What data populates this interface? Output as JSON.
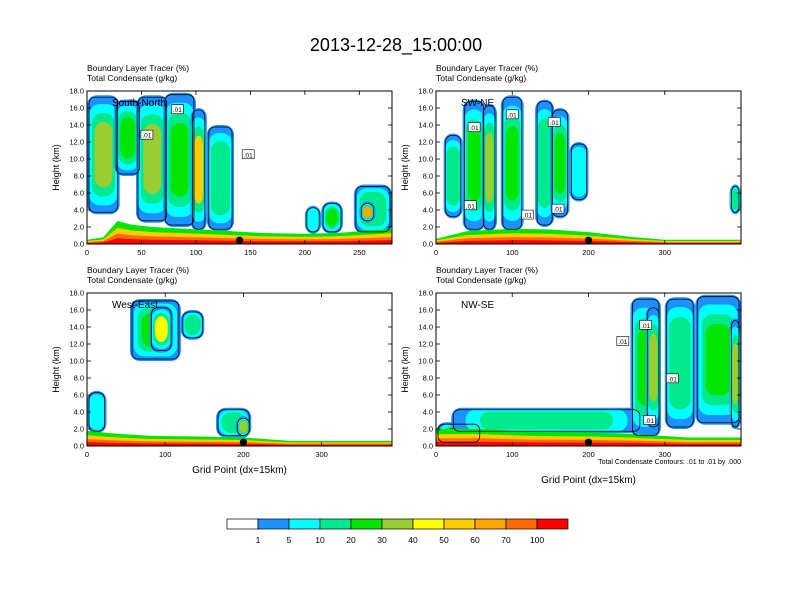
{
  "title": "2013-12-28_15:00:00",
  "colorbar": {
    "colors": [
      "#ffffff",
      "#1e90ff",
      "#00ffff",
      "#00e98c",
      "#00e600",
      "#9acd32",
      "#ffff00",
      "#ffcc00",
      "#ffa500",
      "#ff6a00",
      "#ff0000"
    ],
    "labels": [
      "1",
      "5",
      "10",
      "20",
      "30",
      "40",
      "50",
      "60",
      "70",
      "100"
    ]
  },
  "footnote": "Total Condensate Contours: .01 to .01 by .000",
  "chart_data": [
    {
      "type": "heatmap",
      "line1": "Boundary Layer Tracer    (%)",
      "line2": "Total Condensate    (g/kg)",
      "panel_label": "South-North",
      "ylabel": "Height (km)",
      "xlabel": "",
      "xlim": [
        0,
        280
      ],
      "ylim": [
        0,
        18
      ],
      "x_ticks": [
        0,
        50,
        100,
        150,
        200,
        250
      ],
      "y_ticks": [
        "0.0",
        "2.0",
        "4.0",
        "6.0",
        "8.0",
        "10.0",
        "12.0",
        "14.0",
        "16.0",
        "18.0"
      ],
      "marker_x": 140,
      "contour_labels": [
        {
          "x": 55,
          "y": 12.8,
          "text": ".01"
        },
        {
          "x": 148,
          "y": 10.5,
          "text": ".01"
        },
        {
          "x": 83,
          "y": 15.8,
          "text": ".01"
        }
      ],
      "sketch": {
        "surface": [
          [
            0,
            0.5
          ],
          [
            15,
            0.8
          ],
          [
            28,
            2.7
          ],
          [
            40,
            2.3
          ],
          [
            60,
            2.0
          ],
          [
            90,
            1.8
          ],
          [
            120,
            1.6
          ],
          [
            160,
            1.3
          ],
          [
            200,
            1.2
          ],
          [
            230,
            1.3
          ],
          [
            280,
            1.8
          ]
        ],
        "clouds": [
          {
            "x": 0,
            "w": 30,
            "ytop": 17.5,
            "ybot": 3.5,
            "v": 30
          },
          {
            "x": 25,
            "w": 25,
            "ytop": 17,
            "ybot": 8,
            "v": 20
          },
          {
            "x": 45,
            "w": 30,
            "ytop": 17.5,
            "ybot": 2.5,
            "v": 30
          },
          {
            "x": 70,
            "w": 30,
            "ytop": 17.8,
            "ybot": 2.0,
            "v": 20
          },
          {
            "x": 95,
            "w": 15,
            "ytop": 16.0,
            "ybot": 1.5,
            "v": 50
          },
          {
            "x": 110,
            "w": 25,
            "ytop": 14,
            "ybot": 1.5,
            "v": 10
          },
          {
            "x": 200,
            "w": 15,
            "ytop": 4.5,
            "ybot": 1.2,
            "v": 5
          },
          {
            "x": 215,
            "w": 20,
            "ytop": 5.0,
            "ybot": 1.2,
            "v": 20
          },
          {
            "x": 245,
            "w": 35,
            "ytop": 7.0,
            "ybot": 1.2,
            "v": 10
          },
          {
            "x": 250,
            "w": 15,
            "ytop": 5.0,
            "ybot": 2.5,
            "v": 60
          }
        ]
      }
    },
    {
      "type": "heatmap",
      "line1": "Boundary Layer Tracer    (%)",
      "line2": "Total Condensate    (g/kg)",
      "panel_label": "SW-NE",
      "ylabel": "Height (km)",
      "xlabel": "",
      "xlim": [
        0,
        400
      ],
      "ylim": [
        0,
        18
      ],
      "x_ticks": [
        0,
        100,
        200,
        300
      ],
      "y_ticks": [
        "0.0",
        "2.0",
        "4.0",
        "6.0",
        "8.0",
        "10.0",
        "12.0",
        "14.0",
        "16.0",
        "18.0"
      ],
      "marker_x": 200,
      "contour_labels": [
        {
          "x": 50,
          "y": 13.7,
          "text": ".01"
        },
        {
          "x": 100,
          "y": 15.2,
          "text": ".01"
        },
        {
          "x": 155,
          "y": 14.3,
          "text": ".01"
        },
        {
          "x": 45,
          "y": 4.5,
          "text": ".01"
        },
        {
          "x": 120,
          "y": 3.4,
          "text": ".01"
        },
        {
          "x": 160,
          "y": 4.1,
          "text": ".01"
        }
      ],
      "sketch": {
        "surface": [
          [
            0,
            0.6
          ],
          [
            40,
            1.5
          ],
          [
            100,
            1.8
          ],
          [
            150,
            1.7
          ],
          [
            200,
            1.4
          ],
          [
            260,
            0.8
          ],
          [
            300,
            0.5
          ],
          [
            400,
            0.5
          ]
        ],
        "clouds": [
          {
            "x": 10,
            "w": 25,
            "ytop": 13,
            "ybot": 3,
            "v": 10
          },
          {
            "x": 35,
            "w": 30,
            "ytop": 17,
            "ybot": 1.5,
            "v": 20
          },
          {
            "x": 60,
            "w": 20,
            "ytop": 16.5,
            "ybot": 1.5,
            "v": 30
          },
          {
            "x": 85,
            "w": 30,
            "ytop": 17.5,
            "ybot": 1.5,
            "v": 20
          },
          {
            "x": 130,
            "w": 25,
            "ytop": 17,
            "ybot": 2,
            "v": 10
          },
          {
            "x": 150,
            "w": 25,
            "ytop": 16,
            "ybot": 3,
            "v": 20
          },
          {
            "x": 175,
            "w": 25,
            "ytop": 12,
            "ybot": 5,
            "v": 5
          },
          {
            "x": 385,
            "w": 15,
            "ytop": 7.0,
            "ybot": 3.5,
            "v": 10
          }
        ]
      }
    },
    {
      "type": "heatmap",
      "line1": "Boundary Layer Tracer    (%)",
      "line2": "Total Condensate    (g/kg)",
      "panel_label": "West-East",
      "ylabel": "Height (km)",
      "xlabel": "Grid Point (dx=15km)",
      "xlim": [
        0,
        390
      ],
      "ylim": [
        0,
        18
      ],
      "x_ticks": [
        0,
        100,
        200,
        300
      ],
      "y_ticks": [
        "0.0",
        "2.0",
        "4.0",
        "6.0",
        "8.0",
        "10.0",
        "12.0",
        "14.0",
        "16.0",
        "18.0"
      ],
      "marker_x": 200,
      "contour_labels": [],
      "sketch": {
        "surface": [
          [
            0,
            1.8
          ],
          [
            30,
            1.5
          ],
          [
            80,
            1.2
          ],
          [
            150,
            1.1
          ],
          [
            200,
            1.0
          ],
          [
            260,
            0.6
          ],
          [
            320,
            0.6
          ],
          [
            390,
            0.6
          ]
        ],
        "clouds": [
          {
            "x": 55,
            "w": 65,
            "ytop": 17.3,
            "ybot": 10,
            "v": 20
          },
          {
            "x": 80,
            "w": 30,
            "ytop": 16.5,
            "ybot": 11,
            "v": 40
          },
          {
            "x": 120,
            "w": 30,
            "ytop": 16,
            "ybot": 12.5,
            "v": 10
          },
          {
            "x": 0,
            "w": 25,
            "ytop": 6.5,
            "ybot": 1.5,
            "v": 5
          },
          {
            "x": 165,
            "w": 45,
            "ytop": 4.5,
            "ybot": 1.0,
            "v": 10
          },
          {
            "x": 190,
            "w": 20,
            "ytop": 3.5,
            "ybot": 1.0,
            "v": 30
          }
        ]
      }
    },
    {
      "type": "heatmap",
      "line1": "Boundary Layer Tracer    (%)",
      "line2": "Total Condensate    (g/kg)",
      "panel_label": "NW-SE",
      "ylabel": "Height (km)",
      "xlabel": "Grid Point (dx=15km)",
      "xlim": [
        0,
        400
      ],
      "ylim": [
        0,
        18
      ],
      "x_ticks": [
        0,
        100,
        200,
        300
      ],
      "y_ticks": [
        "0.0",
        "2.0",
        "4.0",
        "6.0",
        "8.0",
        "10.0",
        "12.0",
        "14.0",
        "16.0",
        "18.0"
      ],
      "marker_x": 200,
      "contour_labels": [
        {
          "x": 275,
          "y": 14.2,
          "text": ".01"
        },
        {
          "x": 245,
          "y": 12.3,
          "text": ".01"
        },
        {
          "x": 310,
          "y": 7.9,
          "text": ".01"
        },
        {
          "x": 280,
          "y": 3.0,
          "text": ".01"
        }
      ],
      "sketch": {
        "surface": [
          [
            0,
            2.0
          ],
          [
            60,
            2.0
          ],
          [
            120,
            1.7
          ],
          [
            200,
            1.6
          ],
          [
            260,
            1.4
          ],
          [
            330,
            1.0
          ],
          [
            400,
            1.0
          ]
        ],
        "clouds": [
          {
            "x": 0,
            "w": 60,
            "ytop": 2.8,
            "ybot": 0.2,
            "v": 100
          },
          {
            "x": 20,
            "w": 250,
            "ytop": 4.5,
            "ybot": 1.5,
            "v": 10
          },
          {
            "x": 255,
            "w": 40,
            "ytop": 17.5,
            "ybot": 1.0,
            "v": 20
          },
          {
            "x": 275,
            "w": 20,
            "ytop": 16.5,
            "ybot": 2.0,
            "v": 30
          },
          {
            "x": 300,
            "w": 40,
            "ytop": 17.5,
            "ybot": 2.0,
            "v": 10
          },
          {
            "x": 340,
            "w": 60,
            "ytop": 17.8,
            "ybot": 2.5,
            "v": 20
          },
          {
            "x": 385,
            "w": 15,
            "ytop": 15,
            "ybot": 2.0,
            "v": 30
          }
        ]
      }
    }
  ]
}
